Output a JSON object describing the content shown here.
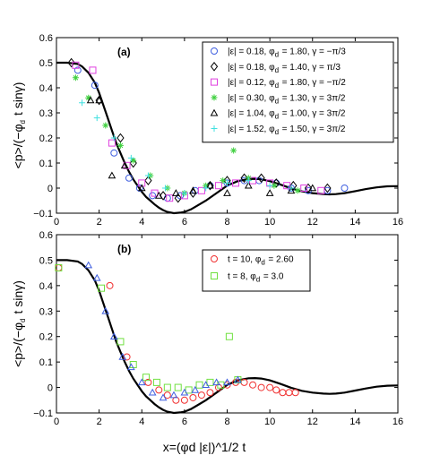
{
  "chart_data": [
    {
      "type": "scatter",
      "panel_label": "(a)",
      "xlabel": "",
      "ylabel": "<p>/(−φd t sinγ)",
      "xlim": [
        0,
        16
      ],
      "ylim": [
        -0.1,
        0.6
      ],
      "xticks": [
        "0",
        "2",
        "4",
        "6",
        "8",
        "10",
        "12",
        "14",
        "16"
      ],
      "yticks": [
        "−0.1",
        "0",
        "0.1",
        "0.2",
        "0.3",
        "0.4",
        "0.5",
        "0.6"
      ],
      "legend_position": "top-right",
      "curve": {
        "x": [
          0,
          0.5,
          1,
          1.2,
          1.5,
          1.8,
          2,
          2.2,
          2.4,
          2.6,
          2.8,
          3,
          3.2,
          3.4,
          3.6,
          3.8,
          4,
          4.2,
          4.4,
          4.6,
          4.8,
          5,
          5.2,
          5.5,
          5.8,
          6,
          6.3,
          6.6,
          7,
          7.5,
          8,
          8.5,
          9,
          9.3,
          9.6,
          10,
          10.5,
          11,
          11.5,
          12,
          12.5,
          12.8,
          13.1,
          13.5,
          14,
          14.5,
          15,
          15.5,
          16
        ],
        "y": [
          0.5,
          0.5,
          0.495,
          0.485,
          0.46,
          0.42,
          0.38,
          0.33,
          0.28,
          0.23,
          0.18,
          0.14,
          0.1,
          0.065,
          0.035,
          0.01,
          -0.015,
          -0.035,
          -0.05,
          -0.065,
          -0.078,
          -0.088,
          -0.095,
          -0.1,
          -0.098,
          -0.095,
          -0.085,
          -0.07,
          -0.05,
          -0.02,
          0.01,
          0.028,
          0.036,
          0.037,
          0.035,
          0.028,
          0.014,
          -0.001,
          -0.013,
          -0.02,
          -0.024,
          -0.025,
          -0.024,
          -0.02,
          -0.012,
          -0.004,
          0.003,
          0.007,
          0.008
        ]
      },
      "series": [
        {
          "name": "|ε| = 0.18, φd = 1.80, γ = −π/3",
          "marker": "circle",
          "color": "#3f5fe0",
          "x": [
            1.0,
            1.8,
            2.7,
            3.4,
            3.9,
            4.5,
            5.2,
            5.8,
            6.5,
            7.2,
            8.0,
            8.8,
            9.5,
            10.3,
            11.0,
            11.8,
            12.7,
            13.5
          ],
          "y": [
            0.47,
            0.41,
            0.14,
            0.04,
            0.0,
            -0.03,
            -0.04,
            -0.03,
            -0.01,
            0.01,
            0.02,
            0.03,
            0.03,
            0.02,
            0.0,
            -0.01,
            -0.01,
            0.0
          ]
        },
        {
          "name": "|ε| = 0.18, φd = 1.40, γ = π/3",
          "marker": "diamond",
          "color": "#000000",
          "x": [
            0.7,
            2.0,
            3.0,
            3.6,
            4.3,
            5.0,
            5.7,
            6.4,
            7.2,
            8.0,
            8.8,
            9.6,
            10.3,
            11.1,
            11.8,
            12.7
          ],
          "y": [
            0.5,
            0.35,
            0.2,
            0.1,
            0.03,
            -0.03,
            -0.04,
            -0.02,
            0.01,
            0.03,
            0.04,
            0.04,
            0.02,
            0.01,
            0.0,
            0.0
          ]
        },
        {
          "name": "|ε| = 0.12, φd = 1.80, γ = −π/2",
          "marker": "square",
          "color": "#e040e0",
          "x": [
            0.9,
            1.7,
            2.6,
            3.3,
            4.0,
            4.6,
            5.3,
            6.0,
            6.8,
            7.6,
            8.4,
            9.2,
            10.0,
            10.8,
            11.6,
            12.4
          ],
          "y": [
            0.49,
            0.47,
            0.18,
            0.09,
            0.02,
            -0.02,
            -0.04,
            -0.03,
            -0.01,
            0.01,
            0.02,
            0.03,
            0.02,
            0.01,
            0.0,
            -0.01
          ]
        },
        {
          "name": "|ε| = 0.30, φd = 1.30, γ = 3π/2",
          "marker": "star",
          "color": "#40d040",
          "x": [
            0.9,
            1.5,
            2.3,
            3.0,
            3.6,
            4.4,
            5.2,
            6.0,
            7.0,
            7.8,
            8.3,
            9.0,
            10.2,
            11.3
          ],
          "y": [
            0.44,
            0.36,
            0.25,
            0.17,
            0.11,
            0.05,
            0.0,
            -0.02,
            0.01,
            0.03,
            0.15,
            0.04,
            0.01,
            -0.01
          ]
        },
        {
          "name": "|ε| = 1.04, φd = 1.00, γ = 3π/2",
          "marker": "triangle",
          "color": "#000000",
          "x": [
            1.6,
            2.0,
            2.6,
            3.2,
            4.0,
            4.8,
            5.6,
            6.4,
            7.2,
            8.0,
            9.0,
            10.0,
            11.0,
            12.0
          ],
          "y": [
            0.35,
            0.35,
            0.05,
            0.09,
            0.0,
            -0.03,
            -0.02,
            -0.01,
            0.01,
            -0.02,
            0.01,
            -0.02,
            -0.01,
            0.0
          ]
        },
        {
          "name": "|ε| = 1.52, φd = 1.50, γ = 3π/2",
          "marker": "plus",
          "color": "#40e0e0",
          "x": [
            1.2,
            1.9,
            2.7,
            3.5,
            4.3,
            5.1,
            6.0,
            7.0,
            8.0,
            9.0,
            10.0,
            11.0
          ],
          "y": [
            0.34,
            0.28,
            0.2,
            0.12,
            0.05,
            0.0,
            -0.02,
            0.0,
            0.02,
            0.03,
            0.01,
            0.0
          ]
        }
      ]
    },
    {
      "type": "scatter",
      "panel_label": "(b)",
      "xlabel": "x=(φd |ε|)^1/2 t",
      "ylabel": "<p>/(−φd t sinγ)",
      "xlim": [
        0,
        16
      ],
      "ylim": [
        -0.1,
        0.6
      ],
      "xticks": [
        "0",
        "2",
        "4",
        "6",
        "8",
        "10",
        "12",
        "14",
        "16"
      ],
      "yticks": [
        "−0.1",
        "0",
        "0.1",
        "0.2",
        "0.3",
        "0.4",
        "0.5",
        "0.6"
      ],
      "legend_position": "top-right",
      "curve_same_as_panel_a": true,
      "series": [
        {
          "name": "t = 10, φd = 2.60",
          "marker": "circle",
          "color": "#f03030",
          "x": [
            0.1,
            2.5,
            3.3,
            4.3,
            4.8,
            5.2,
            5.6,
            6.0,
            6.4,
            6.8,
            7.2,
            7.6,
            8.0,
            8.4,
            8.8,
            9.2,
            9.6,
            10.0,
            10.3,
            10.6,
            10.9,
            11.2
          ],
          "y": [
            0.47,
            0.4,
            0.12,
            0.02,
            -0.01,
            -0.03,
            -0.05,
            -0.05,
            -0.04,
            -0.03,
            -0.02,
            0.0,
            0.01,
            0.02,
            0.02,
            0.01,
            0.0,
            0.0,
            -0.01,
            -0.02,
            -0.02,
            -0.02
          ]
        },
        {
          "name": "t = 8, φd = 3.0",
          "marker": "square",
          "color": "#70e040",
          "x": [
            0.1,
            2.1,
            3.0,
            3.6,
            4.2,
            4.7,
            5.2,
            5.7,
            6.2,
            6.7,
            7.2,
            7.7,
            8.1,
            8.5
          ],
          "y": [
            0.47,
            0.39,
            0.18,
            0.09,
            0.04,
            0.02,
            0.0,
            0.0,
            -0.01,
            0.01,
            0.02,
            0.01,
            0.2,
            0.03
          ]
        },
        {
          "name": "",
          "marker": "triangle",
          "color": "#3f5fe0",
          "x": [
            1.5,
            1.9,
            2.3,
            2.7,
            3.1,
            3.5,
            4.0,
            4.5,
            5.0,
            5.5,
            6.0,
            6.5,
            7.0,
            7.5,
            8.0,
            8.5
          ],
          "y": [
            0.48,
            0.43,
            0.3,
            0.2,
            0.12,
            0.08,
            0.02,
            -0.02,
            -0.04,
            -0.03,
            -0.02,
            -0.01,
            0.01,
            0.02,
            0.02,
            0.03
          ]
        }
      ]
    }
  ]
}
